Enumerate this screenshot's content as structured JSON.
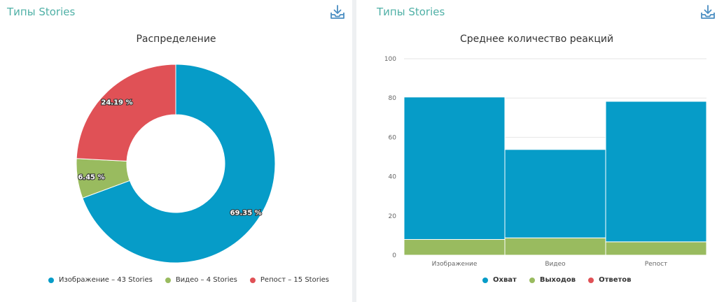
{
  "left_panel": {
    "title": "Типы Stories",
    "download_icon": "download-tray-icon"
  },
  "right_panel": {
    "title": "Типы Stories",
    "download_icon": "download-tray-icon"
  },
  "colors": {
    "title_accent": "#4fb0a6",
    "blue": "#069cc8",
    "green": "#99bb5f",
    "red": "#e05156"
  },
  "chart_data": [
    {
      "type": "pie",
      "variant": "donut",
      "title": "Распределение",
      "slices": [
        {
          "name": "Изображение",
          "value": 43,
          "percent_label": "69.35 %",
          "legend": "Изображение – 43 Stories",
          "color": "#069cc8"
        },
        {
          "name": "Видео",
          "value": 4,
          "percent_label": "6.45 %",
          "legend": "Видео – 4 Stories",
          "color": "#99bb5f"
        },
        {
          "name": "Репост",
          "value": 15,
          "percent_label": "24.19 %",
          "legend": "Репост – 15 Stories",
          "color": "#e05156"
        }
      ],
      "legend_position": "bottom"
    },
    {
      "type": "bar",
      "stacked": true,
      "title": "Среднее количество реакций",
      "categories": [
        "Изображение",
        "Видео",
        "Репост"
      ],
      "series": [
        {
          "name": "Охват",
          "values": [
            72.5,
            45,
            71.5
          ],
          "color": "#069cc8"
        },
        {
          "name": "Выходов",
          "values": [
            8,
            8.8,
            6.8
          ],
          "color": "#99bb5f"
        },
        {
          "name": "Ответов",
          "values": [
            0,
            0,
            0
          ],
          "color": "#e05156"
        }
      ],
      "ylim": [
        0,
        100
      ],
      "yticks": [
        "0",
        "20",
        "40",
        "60",
        "80",
        "100"
      ],
      "grid": true,
      "legend_position": "bottom"
    }
  ]
}
